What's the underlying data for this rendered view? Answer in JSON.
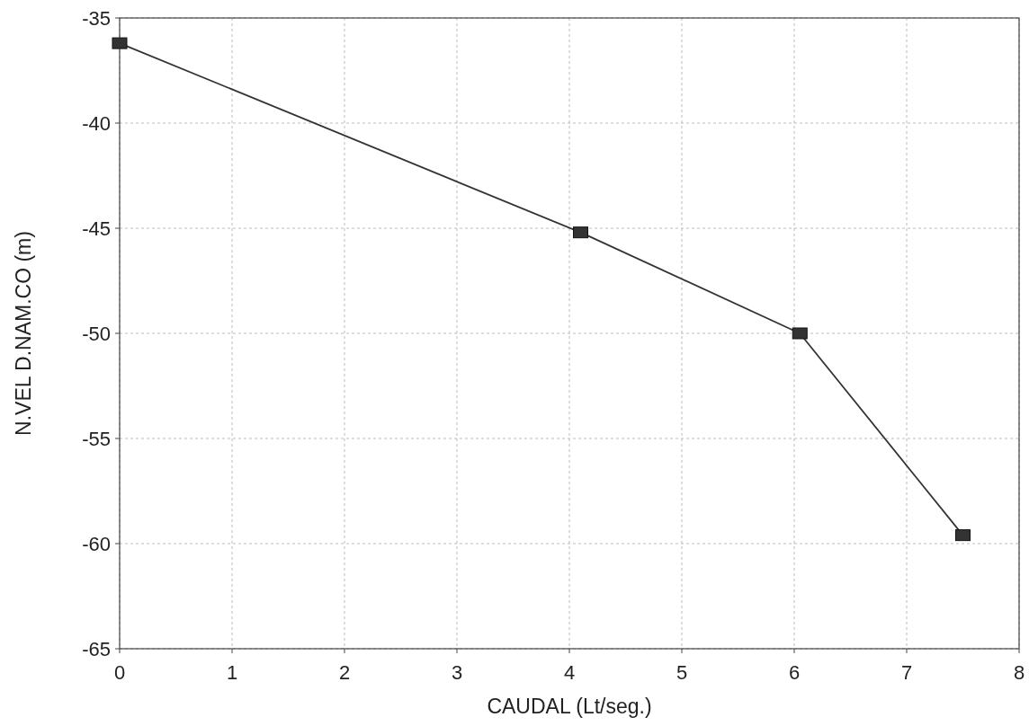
{
  "chart_data": {
    "type": "line",
    "xlabel": "CAUDAL (Lt/seg.)",
    "ylabel": "N.VEL D.NAM.CO (m)",
    "x": [
      0,
      4.1,
      6.05,
      7.5
    ],
    "series": [
      {
        "color": "#333333",
        "values": [
          -36.2,
          -45.2,
          -50,
          -59.6
        ]
      }
    ],
    "xlim": [
      0,
      8
    ],
    "xticks": [
      0,
      1,
      2,
      3,
      4,
      5,
      6,
      7,
      8
    ],
    "ylim": [
      -65,
      -35
    ],
    "yticks": [
      -65,
      -60,
      -55,
      -50,
      -45,
      -40,
      -35
    ],
    "grid": true,
    "marker": "square",
    "line_style": "solid"
  }
}
